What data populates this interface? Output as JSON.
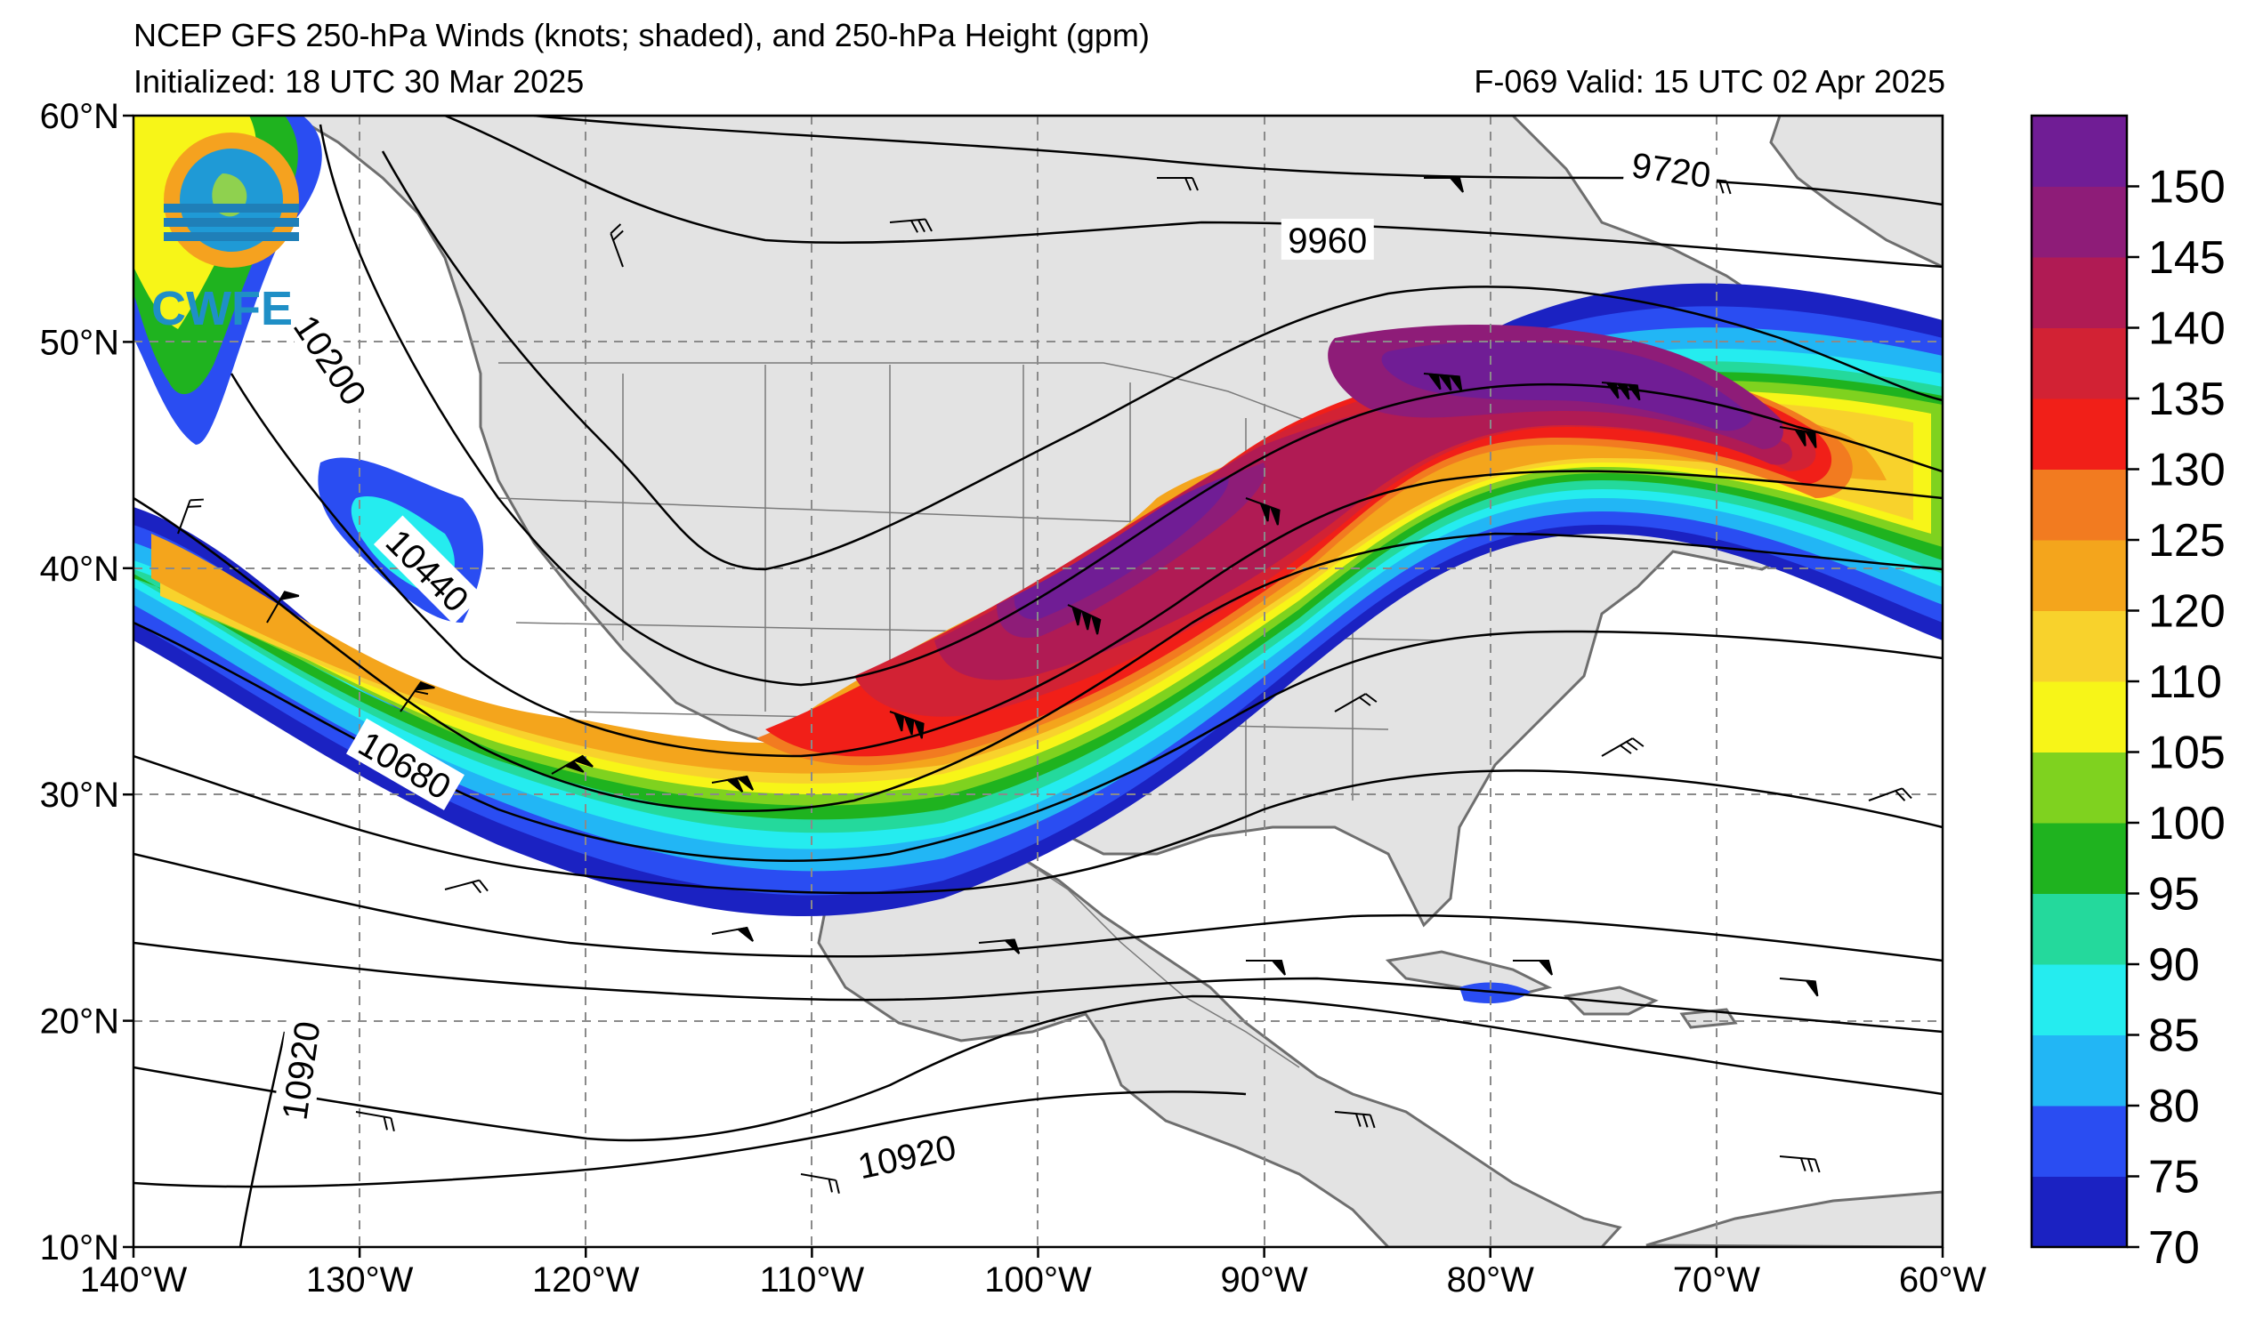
{
  "header": {
    "title_line1": "NCEP GFS 250-hPa Winds (knots; shaded), and 250-hPa Height (gpm)",
    "initialized": "Initialized: 18 UTC 30 Mar 2025",
    "valid": "F-069  Valid: 15 UTC 02 Apr 2025"
  },
  "logo": {
    "text": "CWFE"
  },
  "map": {
    "lon_range": [
      -140,
      -60
    ],
    "lat_range": [
      10,
      60
    ],
    "lon_ticks": [
      {
        "value": -140,
        "label": "140°W"
      },
      {
        "value": -130,
        "label": "130°W"
      },
      {
        "value": -120,
        "label": "120°W"
      },
      {
        "value": -110,
        "label": "110°W"
      },
      {
        "value": -100,
        "label": "100°W"
      },
      {
        "value": -90,
        "label": "90°W"
      },
      {
        "value": -80,
        "label": "80°W"
      },
      {
        "value": -70,
        "label": "70°W"
      },
      {
        "value": -60,
        "label": "60°W"
      }
    ],
    "lat_ticks": [
      {
        "value": 10,
        "label": "10°N"
      },
      {
        "value": 20,
        "label": "20°N"
      },
      {
        "value": 30,
        "label": "30°N"
      },
      {
        "value": 40,
        "label": "40°N"
      },
      {
        "value": 50,
        "label": "50°N"
      },
      {
        "value": 60,
        "label": "60°N"
      }
    ],
    "grid": "dashed",
    "contour_labels": [
      {
        "text": "9720",
        "lon": -72.0,
        "lat": 57.6,
        "angle": 8
      },
      {
        "text": "9960",
        "lon": -87.2,
        "lat": 54.5,
        "angle": 0
      },
      {
        "text": "10200",
        "lon": -131.3,
        "lat": 49.2,
        "angle": 56
      },
      {
        "text": "10440",
        "lon": -127.0,
        "lat": 39.9,
        "angle": 45
      },
      {
        "text": "10680",
        "lon": -128.0,
        "lat": 31.3,
        "angle": 30
      },
      {
        "text": "10920",
        "lon": -132.6,
        "lat": 17.8,
        "angle": -82
      },
      {
        "text": "10920",
        "lon": -105.8,
        "lat": 14.0,
        "angle": -12
      }
    ]
  },
  "colorbar": {
    "min": 70,
    "max": 155,
    "bins": [
      {
        "from": 70,
        "to": 75,
        "color": "#1b22c2"
      },
      {
        "from": 75,
        "to": 80,
        "color": "#2a4df2"
      },
      {
        "from": 80,
        "to": 85,
        "color": "#22b6f5"
      },
      {
        "from": 85,
        "to": 90,
        "color": "#25ecef"
      },
      {
        "from": 90,
        "to": 95,
        "color": "#24d99c"
      },
      {
        "from": 95,
        "to": 100,
        "color": "#1fb31f"
      },
      {
        "from": 100,
        "to": 105,
        "color": "#7fd21f"
      },
      {
        "from": 105,
        "to": 110,
        "color": "#f7f518"
      },
      {
        "from": 110,
        "to": 120,
        "color": "#f8d22c"
      },
      {
        "from": 120,
        "to": 125,
        "color": "#f4a51c"
      },
      {
        "from": 125,
        "to": 130,
        "color": "#f27b20"
      },
      {
        "from": 130,
        "to": 135,
        "color": "#f11f18"
      },
      {
        "from": 135,
        "to": 140,
        "color": "#d22234"
      },
      {
        "from": 140,
        "to": 145,
        "color": "#b01b54"
      },
      {
        "from": 145,
        "to": 150,
        "color": "#8e1c78"
      },
      {
        "from": 150,
        "to": 155,
        "color": "#701d95"
      }
    ],
    "ticks": [
      {
        "value": 70,
        "label": "70"
      },
      {
        "value": 75,
        "label": "75"
      },
      {
        "value": 80,
        "label": "80"
      },
      {
        "value": 85,
        "label": "85"
      },
      {
        "value": 90,
        "label": "90"
      },
      {
        "value": 95,
        "label": "95"
      },
      {
        "value": 100,
        "label": "100"
      },
      {
        "value": 105,
        "label": "105"
      },
      {
        "value": 110,
        "label": "110"
      },
      {
        "value": 120,
        "label": "120"
      },
      {
        "value": 125,
        "label": "125"
      },
      {
        "value": 130,
        "label": "130"
      },
      {
        "value": 135,
        "label": "135"
      },
      {
        "value": 140,
        "label": "140"
      },
      {
        "value": 145,
        "label": "145"
      },
      {
        "value": 150,
        "label": "150"
      }
    ]
  }
}
